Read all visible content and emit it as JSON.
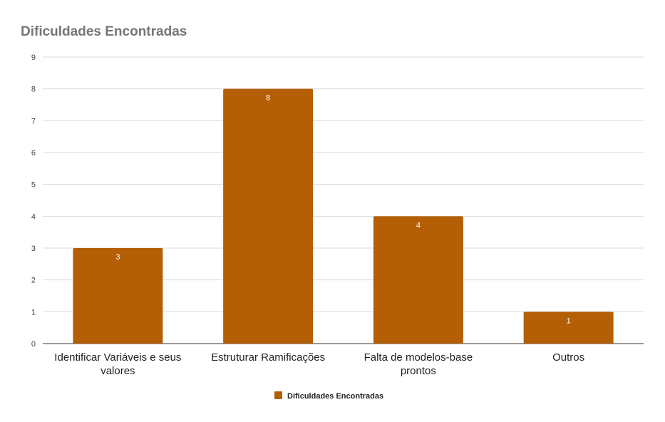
{
  "chart_data": {
    "type": "bar",
    "title": "Dificuldades Encontradas",
    "xlabel": "",
    "ylabel": "",
    "categories": [
      "Identificar Variáveis e seus valores",
      "Estruturar Ramificações",
      "Falta de modelos-base prontos",
      "Outros"
    ],
    "series": [
      {
        "name": "Dificuldades Encontradas",
        "values": [
          3,
          8,
          4,
          1
        ],
        "color": "#b45f06"
      }
    ],
    "ylim": [
      0,
      9
    ],
    "yticks": [
      0,
      1,
      2,
      3,
      4,
      5,
      6,
      7,
      8,
      9
    ],
    "grid": true,
    "legend": "bottom"
  }
}
